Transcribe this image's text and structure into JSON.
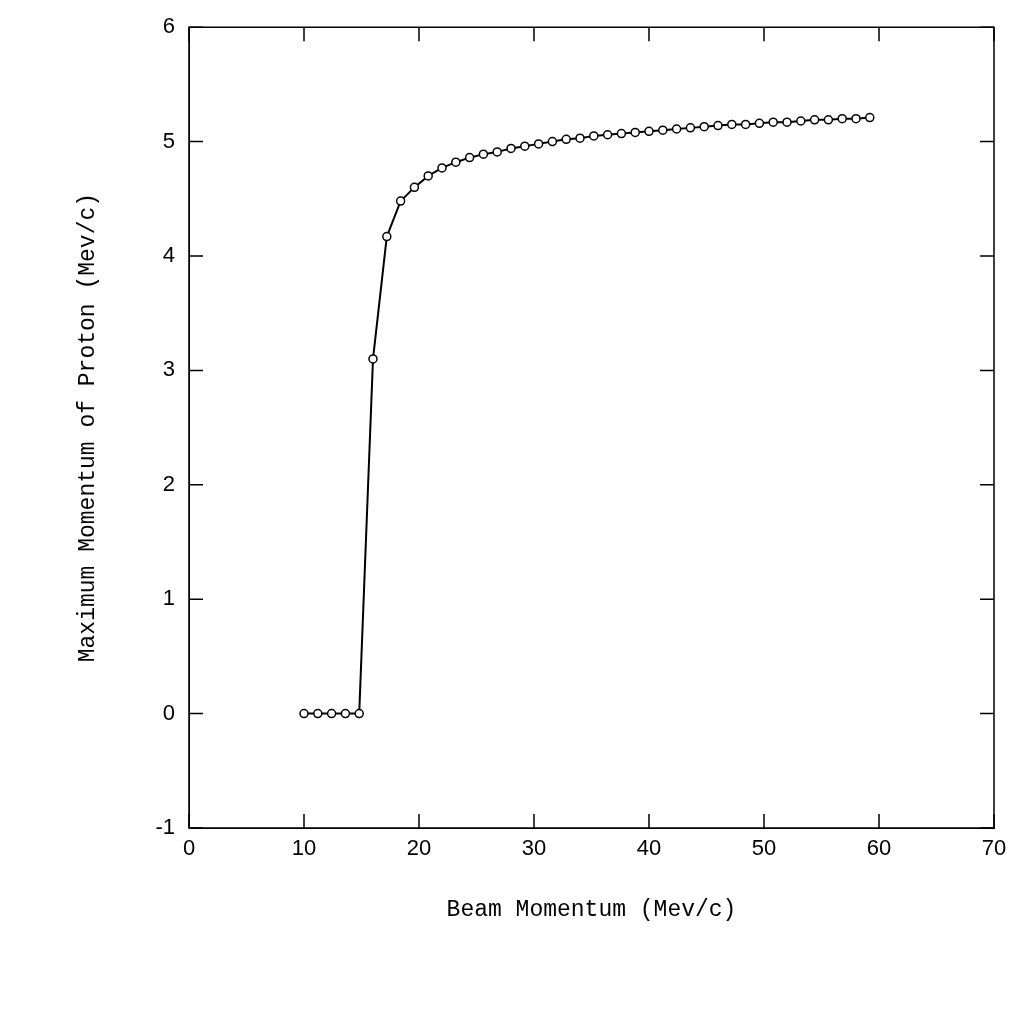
{
  "chart_data": {
    "type": "line",
    "xlabel": "Beam Momentum (Mev/c)",
    "ylabel": "Maximum Momentum of Proton (Mev/c)",
    "x": [
      10,
      11.2,
      12.4,
      13.6,
      14.8,
      16,
      17.2,
      18.4,
      19.6,
      20.8,
      22,
      23.2,
      24.4,
      25.6,
      26.8,
      28,
      29.2,
      30.4,
      31.6,
      32.8,
      34,
      35.2,
      36.4,
      37.6,
      38.8,
      40,
      41.2,
      42.4,
      43.6,
      44.8,
      46,
      47.2,
      48.4,
      49.6,
      50.8,
      52,
      53.2,
      54.4,
      55.6,
      56.8,
      58,
      59.2
    ],
    "series": [
      {
        "color": "#000000",
        "values": [
          0,
          0,
          0,
          0,
          0,
          3.1,
          4.17,
          4.48,
          4.6,
          4.7,
          4.77,
          4.82,
          4.86,
          4.89,
          4.91,
          4.94,
          4.96,
          4.98,
          5.0,
          5.02,
          5.03,
          5.05,
          5.06,
          5.07,
          5.08,
          5.09,
          5.1,
          5.11,
          5.12,
          5.13,
          5.14,
          5.15,
          5.15,
          5.16,
          5.17,
          5.17,
          5.18,
          5.19,
          5.19,
          5.2,
          5.2,
          5.21
        ]
      }
    ],
    "xlim": [
      0,
      70
    ],
    "xticks": [
      0,
      10,
      20,
      30,
      40,
      50,
      60,
      70
    ],
    "ylim": [
      -1,
      6
    ],
    "yticks": [
      -1,
      0,
      1,
      2,
      3,
      4,
      5,
      6
    ],
    "grid": false,
    "legend": false,
    "marker": "circle",
    "line_style": "solid"
  }
}
